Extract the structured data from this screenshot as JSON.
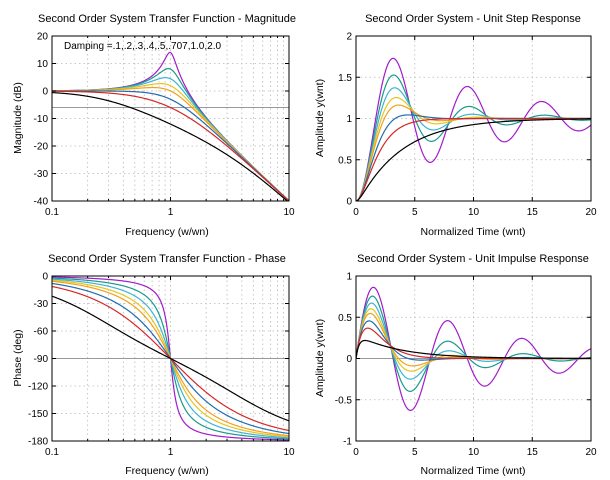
{
  "figure": {
    "damping_ratios": [
      0.1,
      0.2,
      0.3,
      0.4,
      0.5,
      0.707,
      1.0,
      2.0
    ],
    "colors": [
      "#a21bcc",
      "#1a9a8c",
      "#3db3d6",
      "#e8c41e",
      "#f2a11a",
      "#1f6db3",
      "#d62728",
      "#000000"
    ]
  },
  "chart_data": [
    {
      "id": "magnitude",
      "type": "line",
      "function": "magnitude_db",
      "title": "Second Order System Transfer Function - Magnitude",
      "xlabel": "Frequency (w/wn)",
      "ylabel": "Magnitude (dB)",
      "xscale": "log",
      "xlim": [
        0.1,
        10
      ],
      "ylim": [
        -40,
        20
      ],
      "xticks": [
        0.1,
        1,
        10
      ],
      "xtick_labels": [
        "0.1",
        "1",
        "10"
      ],
      "yticks": [
        -40,
        -30,
        -20,
        -10,
        0,
        10,
        20
      ],
      "ytick_labels": [
        "-40",
        "-30",
        "-20",
        "-10",
        "0",
        "10",
        "20"
      ],
      "reference_line": -6,
      "annotation": "Damping =.1,.2,.3,.4,.5,.707,1.0,2.0",
      "grid": true
    },
    {
      "id": "step",
      "type": "line",
      "function": "step_response",
      "title": "Second Order System - Unit Step Response",
      "xlabel": "Normalized Time (wnt)",
      "ylabel": "Amplitude y(wnt)",
      "xscale": "linear",
      "xlim": [
        0,
        20
      ],
      "ylim": [
        0,
        2
      ],
      "xticks": [
        0,
        5,
        10,
        15,
        20
      ],
      "xtick_labels": [
        "0",
        "5",
        "10",
        "15",
        "20"
      ],
      "yticks": [
        0,
        0.5,
        1,
        1.5,
        2
      ],
      "ytick_labels": [
        "0",
        "0.5",
        "1",
        "1.5",
        "2"
      ],
      "grid": true
    },
    {
      "id": "phase",
      "type": "line",
      "function": "phase_deg",
      "title": "Second Order System Transfer Function - Phase",
      "xlabel": "Frequency (w/wn)",
      "ylabel": "Phase (deg)",
      "xscale": "log",
      "xlim": [
        0.1,
        10
      ],
      "ylim": [
        -180,
        0
      ],
      "xticks": [
        0.1,
        1,
        10
      ],
      "xtick_labels": [
        "0.1",
        "1",
        "10"
      ],
      "yticks": [
        -180,
        -150,
        -120,
        -90,
        -60,
        -30,
        0
      ],
      "ytick_labels": [
        "-180",
        "-150",
        "-120",
        "-90",
        "-60",
        "-30",
        "0"
      ],
      "reference_line": -90,
      "grid": true
    },
    {
      "id": "impulse",
      "type": "line",
      "function": "impulse_response",
      "title": "Second Order System - Unit Impulse Response",
      "xlabel": "Normalized Time (wnt)",
      "ylabel": "Amplitude y(wnt)",
      "xscale": "linear",
      "xlim": [
        0,
        20
      ],
      "ylim": [
        -1,
        1
      ],
      "xticks": [
        0,
        5,
        10,
        15,
        20
      ],
      "xtick_labels": [
        "0",
        "5",
        "10",
        "15",
        "20"
      ],
      "yticks": [
        -1,
        -0.5,
        0,
        0.5,
        1
      ],
      "ytick_labels": [
        "-1",
        "-0.5",
        "0",
        "0.5",
        "1"
      ],
      "reference_line": 0,
      "grid": true
    }
  ]
}
